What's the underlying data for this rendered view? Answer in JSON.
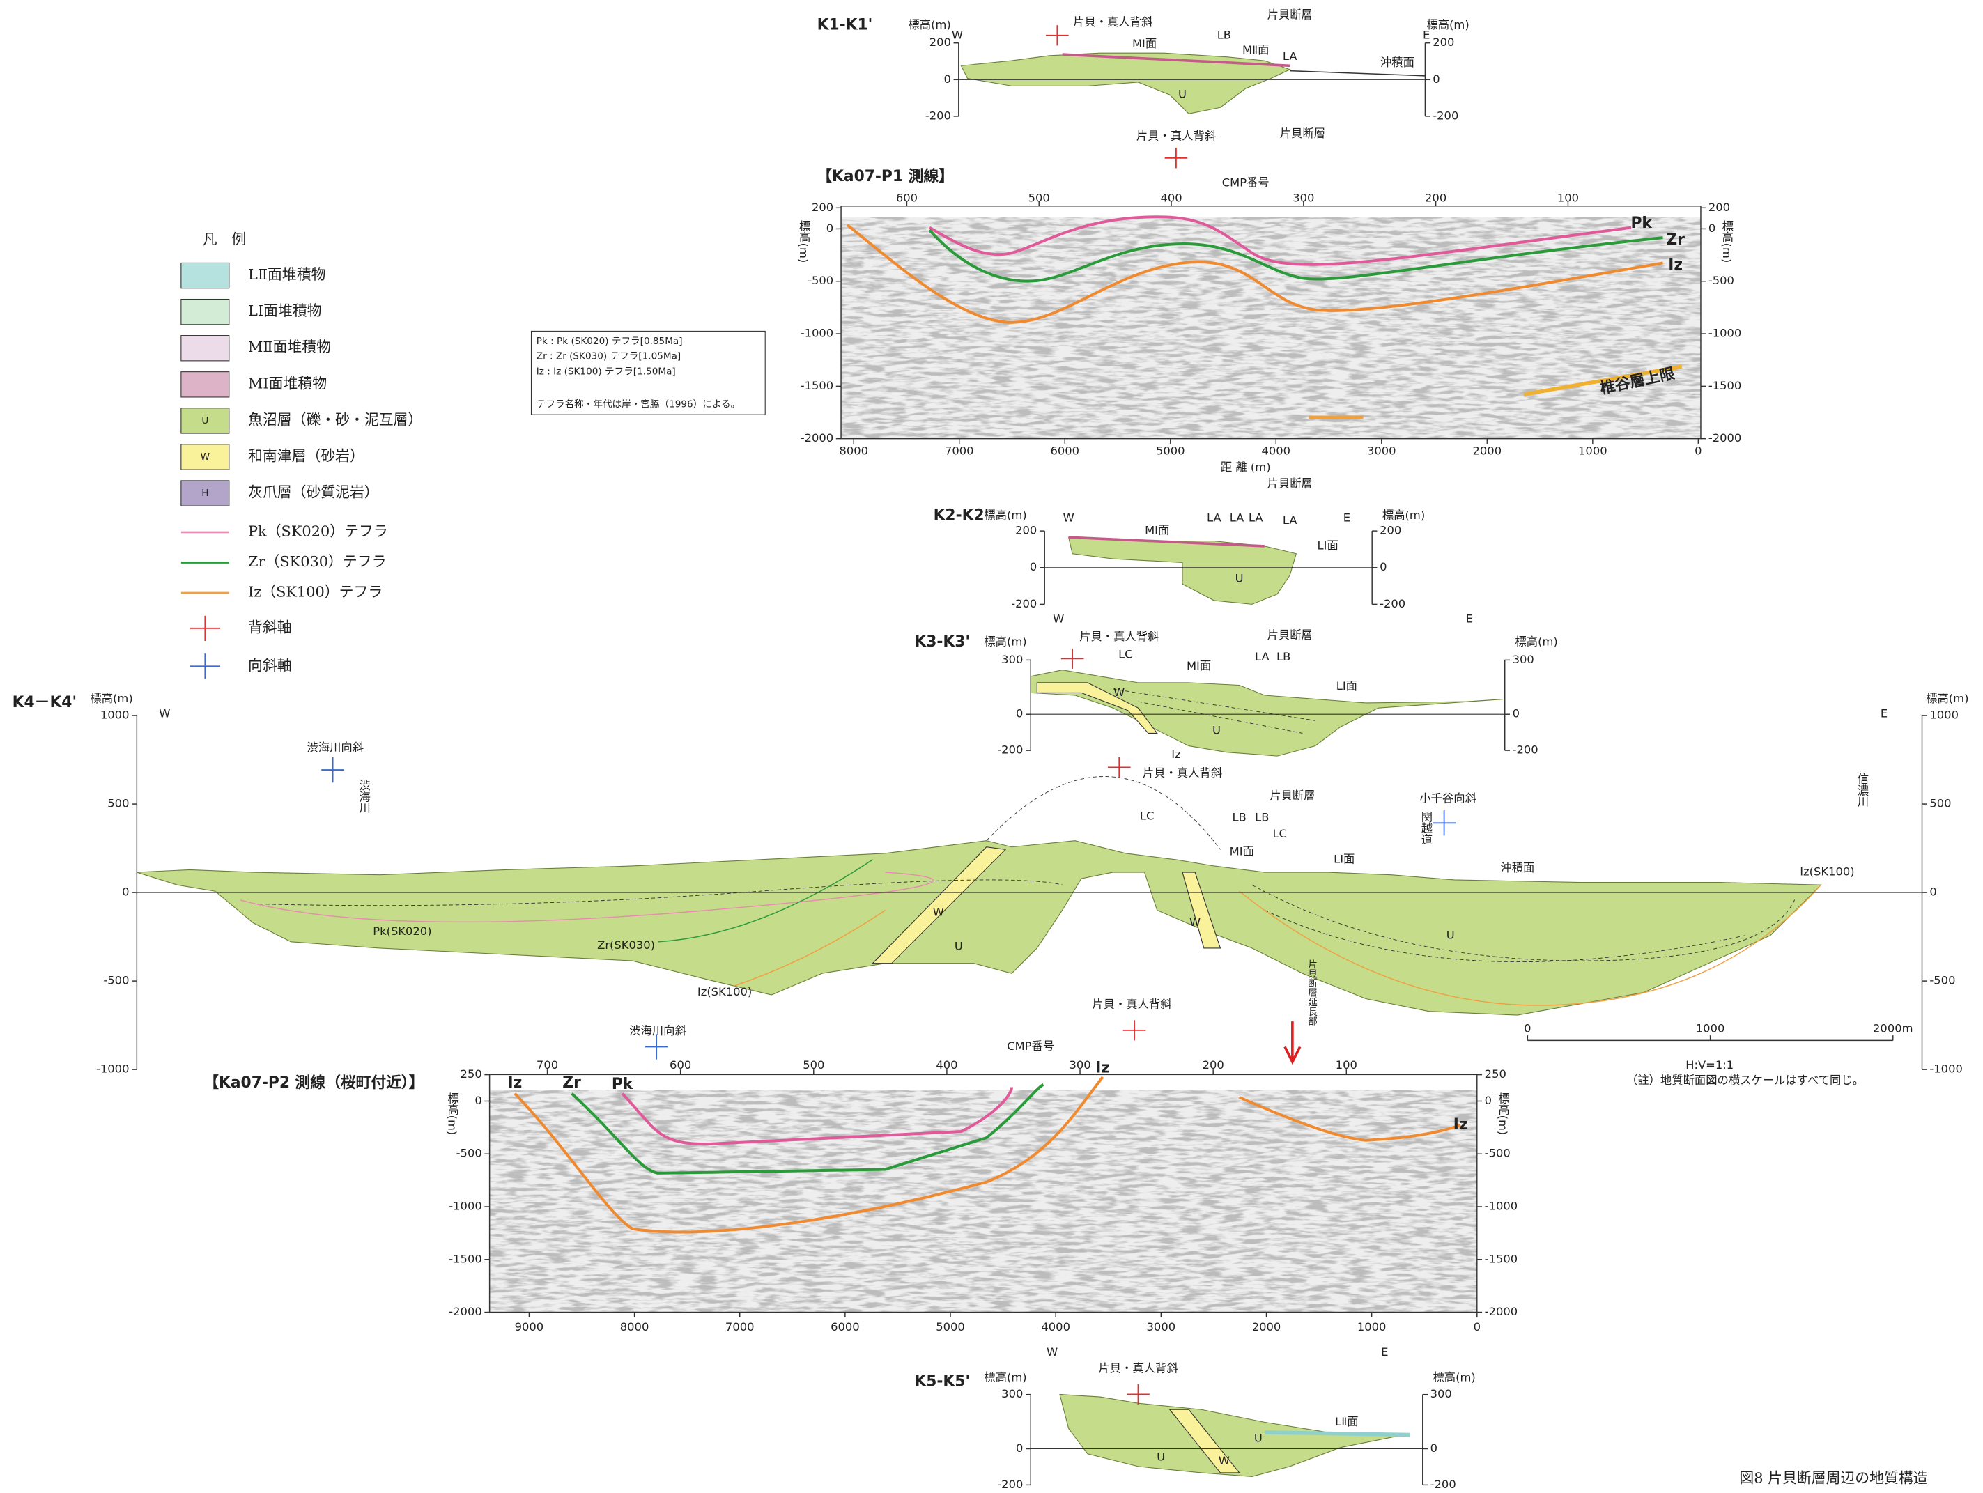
{
  "caption": "図8  片貝断層周辺の地質構造",
  "legend": {
    "title": "凡　例",
    "units": [
      {
        "label": "LⅡ面堆積物"
      },
      {
        "label": "LⅠ面堆積物"
      },
      {
        "label": "MⅡ面堆積物"
      },
      {
        "label": "MⅠ面堆積物"
      },
      {
        "letter": "U",
        "label": "魚沼層（礫・砂・泥互層）"
      },
      {
        "letter": "W",
        "label": "和南津層（砂岩）"
      },
      {
        "letter": "H",
        "label": "灰爪層（砂質泥岩）"
      }
    ],
    "tephras": [
      "Pk（SK020）テフラ",
      "Zr（SK030）テフラ",
      "Iz（SK100）テフラ"
    ],
    "symbols": [
      "背斜軸",
      "向斜軸"
    ]
  },
  "note": [
    "Pk : Pk (SK020) テフラ[0.85Ma]",
    "Zr : Zr (SK030) テフラ[1.05Ma]",
    "Iz : Iz (SK100) テフラ[1.50Ma]",
    "テフラ名称・年代は岸・宮脇（1996）による。"
  ],
  "k1": {
    "title": "K1-K1'",
    "elev_left": "標高(m)",
    "elev_right": "標高(m)",
    "west": "W",
    "east": "E",
    "yticks": [
      200,
      0,
      -200
    ],
    "labels": [
      "片貝・真人背斜",
      "片貝断層",
      "MⅠ面",
      "MⅡ面",
      "沖積面",
      "U",
      "LB",
      "LA"
    ]
  },
  "p1": {
    "anticline": "片貝・真人背斜",
    "fault": "片貝断層",
    "title": "【Ka07-P1 測線】",
    "cmp_label": "CMP番号",
    "cmp_ticks": [
      600,
      500,
      400,
      300,
      200,
      100
    ],
    "elev": "標高(m)",
    "yticks": [
      200,
      0,
      -500,
      -1000,
      -1500,
      -2000
    ],
    "xticks": [
      8000,
      7000,
      6000,
      5000,
      4000,
      3000,
      2000,
      1000,
      0
    ],
    "x_label": "距 離 (m)",
    "horizons": [
      "Pk",
      "Zr",
      "Iz"
    ],
    "upper_limit": "椎谷層上限"
  },
  "k2": {
    "title": "K2-K2'",
    "elev_left": "標高(m)",
    "elev_right": "標高(m)",
    "west": "W",
    "east": "E",
    "yticks": [
      200,
      0,
      -200
    ],
    "labels": [
      "片貝断層",
      "MⅠ面",
      "LⅠ面",
      "U",
      "LA",
      "LA",
      "LA",
      "LA"
    ]
  },
  "k3": {
    "title": "K3-K3'",
    "elev_left": "標高(m)",
    "elev_right": "標高(m)",
    "west": "W",
    "east": "E",
    "yticks": [
      300,
      0,
      -200
    ],
    "labels": [
      "片貝・真人背斜",
      "片貝断層",
      "MⅠ面",
      "LⅠ面",
      "W",
      "U",
      "Iz",
      "LC",
      "LA",
      "LB"
    ]
  },
  "k4": {
    "title": "K4－K4'",
    "elev_left": "標高(m)",
    "elev_right": "標高(m)",
    "west": "W",
    "east": "E",
    "yticks": [
      1000,
      500,
      0,
      -500,
      -1000
    ],
    "labels": [
      "渋海川向斜",
      "渋海川",
      "片貝・真人背斜",
      "片貝断層",
      "小千谷向斜",
      "関越道",
      "信濃川",
      "沖積面",
      "LⅠ面",
      "MⅠ面",
      "Pk(SK020)",
      "Zr(SK030)",
      "Iz(SK100)",
      "Iz(SK100)",
      "W",
      "U",
      "W",
      "U",
      "LC",
      "LB",
      "LB",
      "LC"
    ],
    "scale": {
      "ticks": [
        0,
        1000,
        {
          "value": 2000,
          "label": "2000m"
        }
      ],
      "ratio": "H:V=1:1",
      "note": "（註）地質断面図の横スケールはすべて同じ。"
    }
  },
  "p2": {
    "syncline": "渋海川向斜",
    "anticline": "片貝・真人背斜",
    "fault_ext": "片貝断層延長部",
    "cmp_label": "CMP番号",
    "title": "【Ka07-P2 測線（桜町付近）】",
    "cmp_ticks": [
      700,
      600,
      500,
      400,
      300,
      200,
      100
    ],
    "elev": "標高(m)",
    "yticks": [
      250,
      0,
      -500,
      -1000,
      -1500,
      -2000
    ],
    "xticks": [
      9000,
      8000,
      7000,
      6000,
      5000,
      4000,
      3000,
      2000,
      1000,
      0
    ],
    "horizons": [
      "Iz",
      "Zr",
      "Pk",
      "Iz",
      "Iz"
    ]
  },
  "k5": {
    "title": "K5-K5'",
    "elev_left": "標高(m)",
    "elev_right": "標高(m)",
    "west": "W",
    "east": "E",
    "yticks": [
      300,
      0,
      -200
    ],
    "labels": [
      "片貝・真人背斜",
      "LⅡ面",
      "U",
      "U",
      "W"
    ]
  }
}
